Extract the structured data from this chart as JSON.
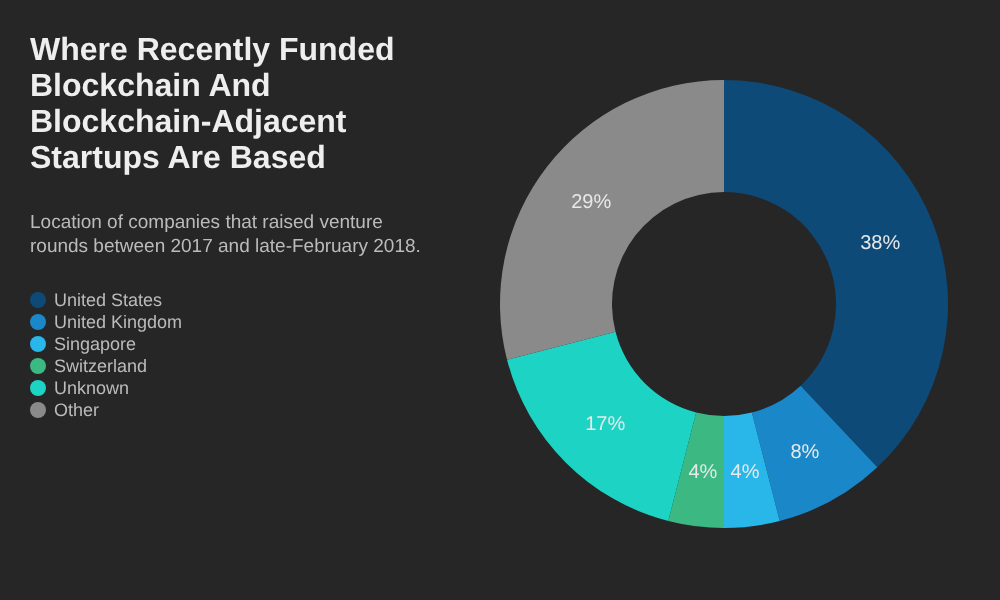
{
  "chart_data": {
    "type": "donut",
    "title": "Where Recently Funded Blockchain And Blockchain-Adjacent Startups Are Based",
    "subtitle": "Location of companies that raised venture rounds between 2017 and late-February 2018.",
    "categories": [
      "United States",
      "United Kingdom",
      "Singapore",
      "Switzerland",
      "Unknown",
      "Other"
    ],
    "values": [
      38,
      8,
      4,
      4,
      17,
      29
    ],
    "colors": [
      "#0d4a78",
      "#1a87c9",
      "#29b6e8",
      "#3cb882",
      "#1dd4c4",
      "#8a8a8a"
    ],
    "value_labels": [
      "38%",
      "8%",
      "4%",
      "4%",
      "17%",
      "29%"
    ],
    "legend": "left"
  }
}
